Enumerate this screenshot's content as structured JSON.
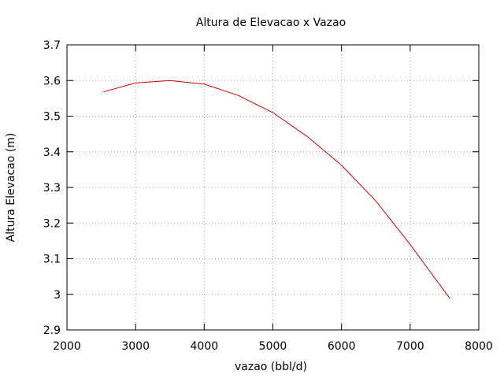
{
  "chart_data": {
    "type": "line",
    "title": "Altura de Elevacao x Vazao",
    "xlabel": "vazao (bbl/d)",
    "ylabel": "Altura Elevacao (m)",
    "xlim": [
      2000,
      8000
    ],
    "ylim": [
      2.9,
      3.7
    ],
    "xticks": [
      2000,
      3000,
      4000,
      5000,
      6000,
      7000,
      8000
    ],
    "yticks": [
      2.9,
      3,
      3.1,
      3.2,
      3.3,
      3.4,
      3.5,
      3.6,
      3.7
    ],
    "xtick_labels": [
      "2000",
      "3000",
      "4000",
      "5000",
      "6000",
      "7000",
      "8000"
    ],
    "ytick_labels": [
      "2.9",
      "3",
      "3.1",
      "3.2",
      "3.3",
      "3.4",
      "3.5",
      "3.6",
      "3.7"
    ],
    "grid": true,
    "legend": "none",
    "series": [
      {
        "color": "#cc0000",
        "x": [
          2530,
          3000,
          3500,
          4000,
          4500,
          5000,
          5500,
          6000,
          6500,
          7000,
          7580
        ],
        "y": [
          3.568,
          3.593,
          3.6,
          3.59,
          3.558,
          3.51,
          3.443,
          3.362,
          3.262,
          3.14,
          2.988
        ]
      }
    ]
  }
}
